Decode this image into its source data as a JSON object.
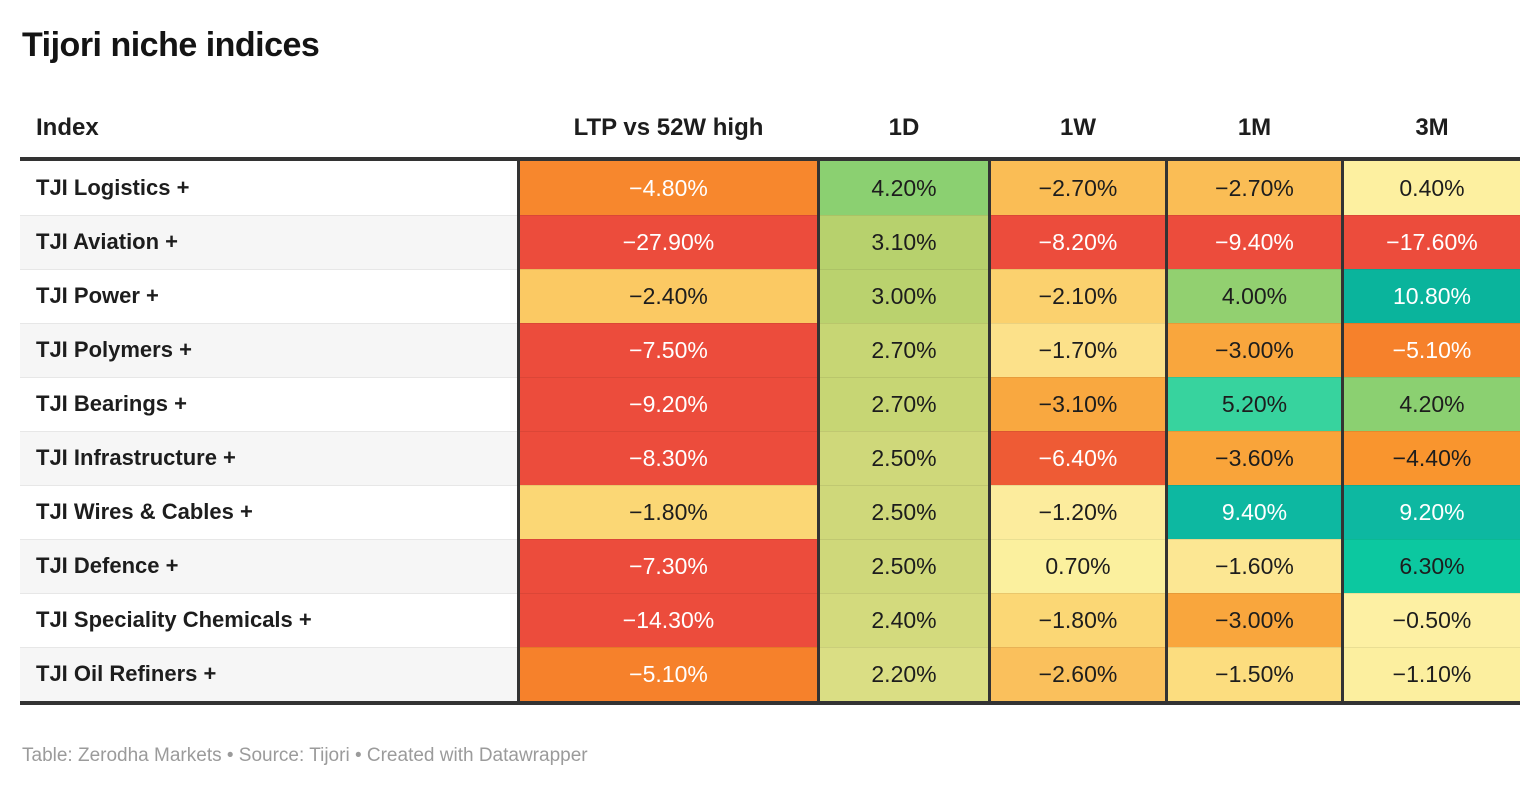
{
  "title": "Tijori niche indices",
  "footer": "Table: Zerodha Markets • Source: Tijori • Created with Datawrapper",
  "colors": {
    "rule": "#333333",
    "alt_row": "#f6f6f6",
    "footer_text": "#9b9b9b",
    "dark_text": "#1d1d1d",
    "light_text": "#ffffff"
  },
  "table": {
    "columns": [
      "Index",
      "LTP vs 52W high",
      "1D",
      "1W",
      "1M",
      "3M"
    ],
    "rows": [
      {
        "index": "TJI Logistics +",
        "cells": [
          {
            "text": "−4.80%",
            "bg": "#f7872d",
            "fg": "#ffffff"
          },
          {
            "text": "4.20%",
            "bg": "#8bd071",
            "fg": "#1d1d1d"
          },
          {
            "text": "−2.70%",
            "bg": "#fabd55",
            "fg": "#1d1d1d"
          },
          {
            "text": "−2.70%",
            "bg": "#fabd55",
            "fg": "#1d1d1d"
          },
          {
            "text": "0.40%",
            "bg": "#fdf0a0",
            "fg": "#1d1d1d"
          }
        ]
      },
      {
        "index": "TJI Aviation +",
        "cells": [
          {
            "text": "−27.90%",
            "bg": "#ec4c3c",
            "fg": "#ffffff"
          },
          {
            "text": "3.10%",
            "bg": "#b7d16d",
            "fg": "#1d1d1d"
          },
          {
            "text": "−8.20%",
            "bg": "#ec4c3c",
            "fg": "#ffffff"
          },
          {
            "text": "−9.40%",
            "bg": "#ec4c3c",
            "fg": "#ffffff"
          },
          {
            "text": "−17.60%",
            "bg": "#ec4c3c",
            "fg": "#ffffff"
          }
        ]
      },
      {
        "index": "TJI Power +",
        "cells": [
          {
            "text": "−2.40%",
            "bg": "#fbc963",
            "fg": "#1d1d1d"
          },
          {
            "text": "3.00%",
            "bg": "#bad26e",
            "fg": "#1d1d1d"
          },
          {
            "text": "−2.10%",
            "bg": "#fbd16e",
            "fg": "#1d1d1d"
          },
          {
            "text": "4.00%",
            "bg": "#92d070",
            "fg": "#1d1d1d"
          },
          {
            "text": "10.80%",
            "bg": "#0ab49c",
            "fg": "#ffffff"
          }
        ]
      },
      {
        "index": "TJI Polymers +",
        "cells": [
          {
            "text": "−7.50%",
            "bg": "#ec4c3c",
            "fg": "#ffffff"
          },
          {
            "text": "2.70%",
            "bg": "#c7d674",
            "fg": "#1d1d1d"
          },
          {
            "text": "−1.70%",
            "bg": "#fce18a",
            "fg": "#1d1d1d"
          },
          {
            "text": "−3.00%",
            "bg": "#f9a63d",
            "fg": "#1d1d1d"
          },
          {
            "text": "−5.10%",
            "bg": "#f6812b",
            "fg": "#ffffff"
          }
        ]
      },
      {
        "index": "TJI Bearings +",
        "cells": [
          {
            "text": "−9.20%",
            "bg": "#ec4c3c",
            "fg": "#ffffff"
          },
          {
            "text": "2.70%",
            "bg": "#c7d674",
            "fg": "#1d1d1d"
          },
          {
            "text": "−3.10%",
            "bg": "#f9a840",
            "fg": "#1d1d1d"
          },
          {
            "text": "5.20%",
            "bg": "#37d39e",
            "fg": "#1d1d1d"
          },
          {
            "text": "4.20%",
            "bg": "#8bd071",
            "fg": "#1d1d1d"
          }
        ]
      },
      {
        "index": "TJI Infrastructure +",
        "cells": [
          {
            "text": "−8.30%",
            "bg": "#ec4c3c",
            "fg": "#ffffff"
          },
          {
            "text": "2.50%",
            "bg": "#cfd87a",
            "fg": "#1d1d1d"
          },
          {
            "text": "−6.40%",
            "bg": "#ee5b35",
            "fg": "#ffffff"
          },
          {
            "text": "−3.60%",
            "bg": "#f9a43a",
            "fg": "#1d1d1d"
          },
          {
            "text": "−4.40%",
            "bg": "#f9952e",
            "fg": "#1d1d1d"
          }
        ]
      },
      {
        "index": "TJI Wires & Cables +",
        "cells": [
          {
            "text": "−1.80%",
            "bg": "#fbd775",
            "fg": "#1d1d1d"
          },
          {
            "text": "2.50%",
            "bg": "#cfd87a",
            "fg": "#1d1d1d"
          },
          {
            "text": "−1.20%",
            "bg": "#fcec9d",
            "fg": "#1d1d1d"
          },
          {
            "text": "9.40%",
            "bg": "#0db8a1",
            "fg": "#ffffff"
          },
          {
            "text": "9.20%",
            "bg": "#0db8a1",
            "fg": "#ffffff"
          }
        ]
      },
      {
        "index": "TJI Defence +",
        "cells": [
          {
            "text": "−7.30%",
            "bg": "#ec4c3c",
            "fg": "#ffffff"
          },
          {
            "text": "2.50%",
            "bg": "#cfd87a",
            "fg": "#1d1d1d"
          },
          {
            "text": "0.70%",
            "bg": "#fbf09e",
            "fg": "#1d1d1d"
          },
          {
            "text": "−1.60%",
            "bg": "#fce793",
            "fg": "#1d1d1d"
          },
          {
            "text": "6.30%",
            "bg": "#0cc8a0",
            "fg": "#1d1d1d"
          }
        ]
      },
      {
        "index": "TJI Speciality Chemicals +",
        "cells": [
          {
            "text": "−14.30%",
            "bg": "#ec4c3c",
            "fg": "#ffffff"
          },
          {
            "text": "2.40%",
            "bg": "#d3da7d",
            "fg": "#1d1d1d"
          },
          {
            "text": "−1.80%",
            "bg": "#fbd775",
            "fg": "#1d1d1d"
          },
          {
            "text": "−3.00%",
            "bg": "#f9a63d",
            "fg": "#1d1d1d"
          },
          {
            "text": "−0.50%",
            "bg": "#fdf0a3",
            "fg": "#1d1d1d"
          }
        ]
      },
      {
        "index": "TJI Oil Refiners +",
        "cells": [
          {
            "text": "−5.10%",
            "bg": "#f6812b",
            "fg": "#ffffff"
          },
          {
            "text": "2.20%",
            "bg": "#dade84",
            "fg": "#1d1d1d"
          },
          {
            "text": "−2.60%",
            "bg": "#fac05c",
            "fg": "#1d1d1d"
          },
          {
            "text": "−1.50%",
            "bg": "#fcdd7f",
            "fg": "#1d1d1d"
          },
          {
            "text": "−1.10%",
            "bg": "#fcef9f",
            "fg": "#1d1d1d"
          }
        ]
      }
    ]
  },
  "chart_data": {
    "type": "table",
    "title": "Tijori niche indices",
    "columns": [
      "Index",
      "LTP vs 52W high",
      "1D",
      "1W",
      "1M",
      "3M"
    ],
    "units": "percent",
    "rows": [
      [
        "TJI Logistics +",
        -4.8,
        4.2,
        -2.7,
        -2.7,
        0.4
      ],
      [
        "TJI Aviation +",
        -27.9,
        3.1,
        -8.2,
        -9.4,
        -17.6
      ],
      [
        "TJI Power +",
        -2.4,
        3.0,
        -2.1,
        4.0,
        10.8
      ],
      [
        "TJI Polymers +",
        -7.5,
        2.7,
        -1.7,
        -3.0,
        -5.1
      ],
      [
        "TJI Bearings +",
        -9.2,
        2.7,
        -3.1,
        5.2,
        4.2
      ],
      [
        "TJI Infrastructure +",
        -8.3,
        2.5,
        -6.4,
        -3.6,
        -4.4
      ],
      [
        "TJI Wires & Cables +",
        -1.8,
        2.5,
        -1.2,
        9.4,
        9.2
      ],
      [
        "TJI Defence +",
        -7.3,
        2.5,
        0.7,
        -1.6,
        6.3
      ],
      [
        "TJI Speciality Chemicals +",
        -14.3,
        2.4,
        -1.8,
        -3.0,
        -0.5
      ],
      [
        "TJI Oil Refiners +",
        -5.1,
        2.2,
        -2.6,
        -1.5,
        -1.1
      ]
    ],
    "notes": "Cells colored on a diverging red-yellow-green/teal heatmap scale; negative values red/orange/yellow, positive values green/teal."
  }
}
